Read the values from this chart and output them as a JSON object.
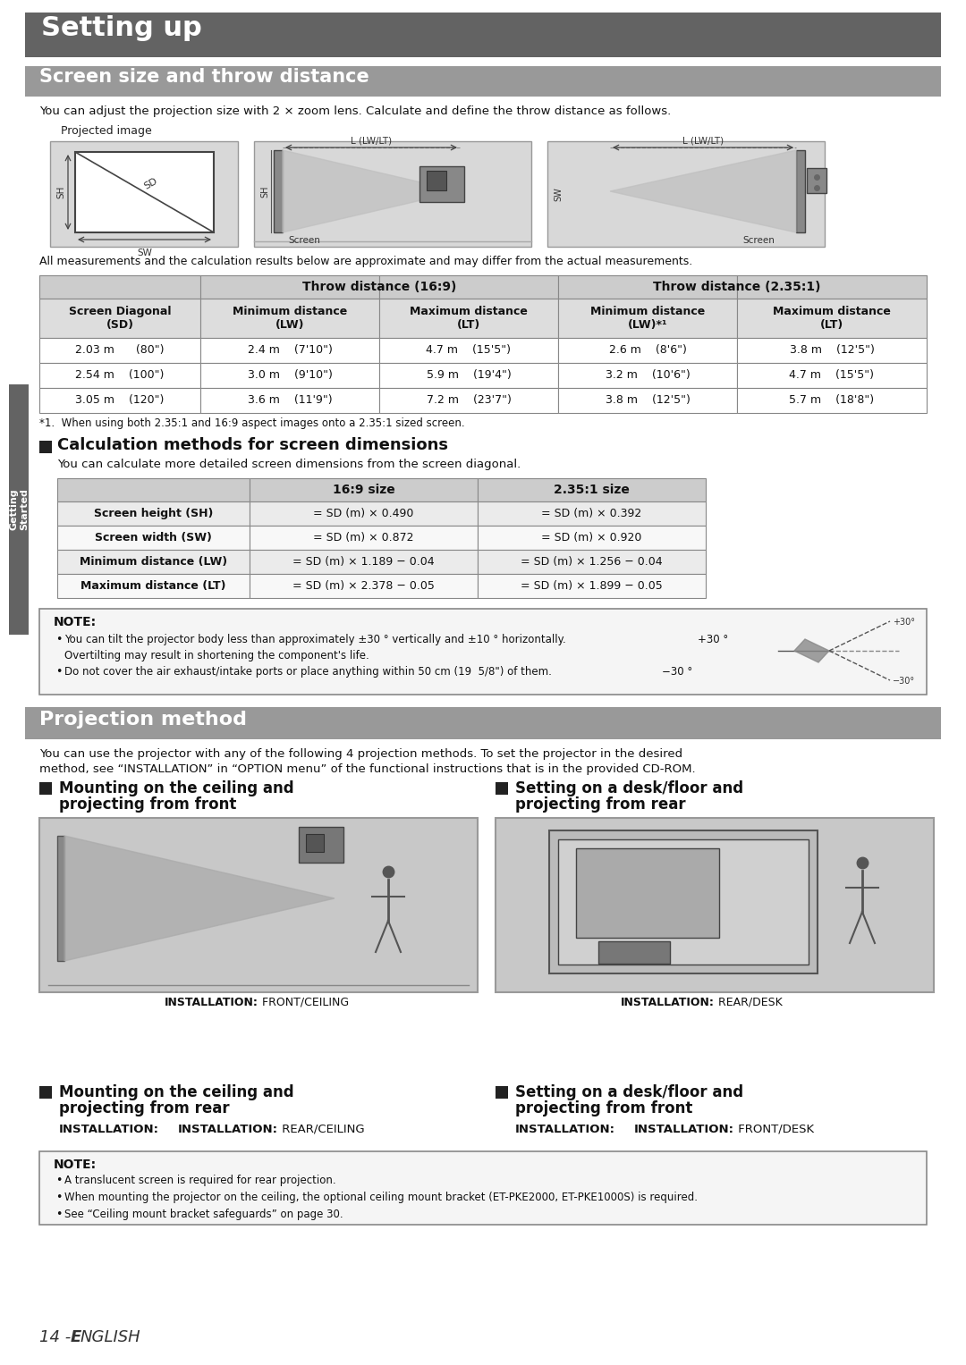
{
  "page_bg": "#ffffff",
  "main_title": "Setting up",
  "main_title_bg": "#636363",
  "main_title_color": "#ffffff",
  "section1_title": "Screen size and throw distance",
  "section1_title_bg": "#999999",
  "section1_title_color": "#ffffff",
  "intro_text": "You can adjust the projection size with 2 × zoom lens. Calculate and define the throw distance as follows.",
  "projected_image_label": "   Projected image",
  "all_measurements_text": "All measurements and the calculation results below are approximate and may differ from the actual measurements.",
  "throw_subheaders": [
    "Screen Diagonal\n(SD)",
    "Minimum distance\n(LW)",
    "Maximum distance\n(LT)",
    "Minimum distance\n(LW)*¹",
    "Maximum distance\n(LT)"
  ],
  "throw_rows": [
    [
      "2.03 m      (80\")",
      "2.4 m    (7'10\")",
      "4.7 m    (15'5\")",
      "2.6 m    (8'6\")",
      "3.8 m    (12'5\")"
    ],
    [
      "2.54 m    (100\")",
      "3.0 m    (9'10\")",
      "5.9 m    (19'4\")",
      "3.2 m    (10'6\")",
      "4.7 m    (15'5\")"
    ],
    [
      "3.05 m    (120\")",
      "3.6 m    (11'9\")",
      "7.2 m    (23'7\")",
      "3.8 m    (12'5\")",
      "5.7 m    (18'8\")"
    ]
  ],
  "footnote1": "*1.  When using both 2.35:1 and 16:9 aspect images onto a 2.35:1 sized screen.",
  "calc_section_title": "Calculation methods for screen dimensions",
  "calc_intro": "You can calculate more detailed screen dimensions from the screen diagonal.",
  "calc_headers": [
    "",
    "16:9 size",
    "2.35:1 size"
  ],
  "calc_rows": [
    [
      "Screen height (SH)",
      "= SD (m) × 0.490",
      "= SD (m) × 0.392"
    ],
    [
      "Screen width (SW)",
      "= SD (m) × 0.872",
      "= SD (m) × 0.920"
    ],
    [
      "Minimum distance (LW)",
      "= SD (m) × 1.189 − 0.04",
      "= SD (m) × 1.256 − 0.04"
    ],
    [
      "Maximum distance (LT)",
      "= SD (m) × 2.378 − 0.05",
      "= SD (m) × 1.899 − 0.05"
    ]
  ],
  "note1_title": "NOTE:",
  "note1_b1a": "You can tilt the projector body less than approximately ±30 ° vertically and ±10 ° horizontally.",
  "note1_b1b": "+30 °",
  "note1_b2": "Overtilting may result in shortening the component's life.",
  "note1_b3a": "Do not cover the air exhaust/intake ports or place anything within 50 cm (19  5/8\") of them.",
  "note1_b3b": "−30 °",
  "section2_title": "Projection method",
  "section2_title_bg": "#999999",
  "section2_title_color": "#ffffff",
  "proj_intro1": "You can use the projector with any of the following 4 projection methods. To set the projector in the desired",
  "proj_intro2": "method, see “INSTALLATION” in “OPTION menu” of the functional instructions that is in the provided CD-ROM.",
  "proj_methods": [
    {
      "title1": "Mounting on the ceiling and",
      "title2": "projecting from front",
      "label_bold": "INSTALLATION:",
      "label_normal": " FRONT/CEILING",
      "has_image": true
    },
    {
      "title1": "Setting on a desk/floor and",
      "title2": "projecting from rear",
      "label_bold": "INSTALLATION:",
      "label_normal": " REAR/DESK",
      "has_image": true
    },
    {
      "title1": "Mounting on the ceiling and",
      "title2": "projecting from rear",
      "label_bold": "INSTALLATION:",
      "label_normal": " REAR/CEILING",
      "has_image": false
    },
    {
      "title1": "Setting on a desk/floor and",
      "title2": "projecting from front",
      "label_bold": "INSTALLATION:",
      "label_normal": " FRONT/DESK",
      "has_image": false
    }
  ],
  "note2_title": "NOTE:",
  "note2_bullets": [
    "A translucent screen is required for rear projection.",
    "When mounting the projector on the ceiling, the optional ceiling mount bracket (ET-PKE2000, ET-PKE1000S) is required.",
    "See “Ceiling mount bracket safeguards” on page 30."
  ],
  "footer_num": "14 - ",
  "footer_text": "E",
  "footer_rest": "NGLISH",
  "sidebar_text": "Getting\nStarted",
  "sidebar_bg": "#636363",
  "sidebar_color": "#ffffff",
  "table_header_bg": "#cccccc",
  "table_subheader_bg": "#dddddd",
  "table_row_bg": "#ffffff",
  "table_border": "#888888"
}
